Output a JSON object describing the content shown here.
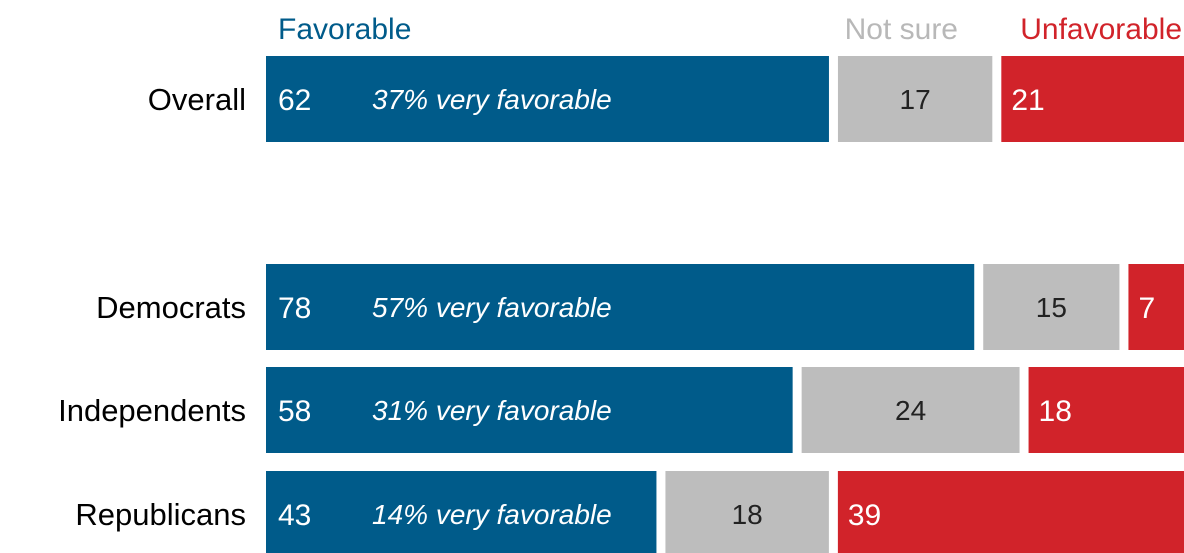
{
  "chart_data": {
    "type": "bar",
    "orientation": "horizontal",
    "stacked": true,
    "categories": [
      "Overall",
      "Democrats",
      "Independents",
      "Republicans"
    ],
    "series": [
      {
        "name": "Favorable",
        "values": [
          62,
          78,
          58,
          43
        ],
        "color": "#005b8a"
      },
      {
        "name": "Not sure",
        "values": [
          17,
          15,
          24,
          18
        ],
        "color": "#bdbdbd"
      },
      {
        "name": "Unfavorable",
        "values": [
          21,
          7,
          18,
          39
        ],
        "color": "#d1232a"
      }
    ],
    "annotations": [
      "37% very favorable",
      "57% very favorable",
      "31% very favorable",
      "14% very favorable"
    ],
    "legend_position": "top",
    "xlim": [
      0,
      100
    ],
    "grid": false
  }
}
